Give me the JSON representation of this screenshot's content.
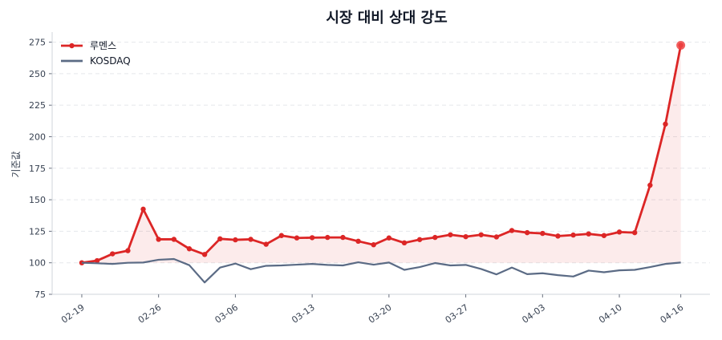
{
  "chart_data": {
    "type": "line",
    "title": "시장 대비 상대 강도",
    "xlabel": "",
    "ylabel": "기준값",
    "ylim": [
      75,
      283
    ],
    "yticks": [
      75,
      100,
      125,
      150,
      175,
      200,
      225,
      250,
      275
    ],
    "grid": "horizontal dashed",
    "legend_placement": "top-left",
    "baseline": 100,
    "x": [
      "02-19",
      "02-20",
      "02-21",
      "02-24",
      "02-25",
      "02-26",
      "02-27",
      "02-28",
      "03-04",
      "03-05",
      "03-06",
      "03-07",
      "03-10",
      "03-11",
      "03-12",
      "03-13",
      "03-14",
      "03-17",
      "03-18",
      "03-19",
      "03-20",
      "03-21",
      "03-24",
      "03-25",
      "03-26",
      "03-27",
      "03-28",
      "03-31",
      "04-01",
      "04-02",
      "04-03",
      "04-04",
      "04-07",
      "04-08",
      "04-09",
      "04-10",
      "04-11",
      "04-14",
      "04-15",
      "04-16"
    ],
    "xtick_labels": [
      "02-19",
      "02-26",
      "03-06",
      "03-13",
      "03-20",
      "03-27",
      "04-03",
      "04-10",
      "04-16"
    ],
    "series": [
      {
        "name": "루멘스",
        "color": "#dc2626",
        "markers": true,
        "fill_to_baseline": true,
        "values": [
          100,
          101.7,
          107.1,
          109.6,
          142.5,
          118.6,
          118.6,
          111.1,
          106.6,
          119.0,
          118.2,
          118.6,
          114.7,
          121.6,
          119.7,
          119.9,
          120.1,
          120.1,
          117.1,
          114.3,
          119.7,
          115.8,
          118.4,
          120.1,
          122.2,
          120.7,
          122.2,
          120.5,
          125.6,
          123.9,
          123.3,
          121.2,
          122.0,
          122.9,
          121.6,
          124.4,
          123.9,
          161.5,
          210,
          272.5
        ]
      },
      {
        "name": "KOSDAQ",
        "color": "#5b6b85",
        "markers": false,
        "values": [
          100,
          99.6,
          99.1,
          100,
          100.2,
          102.4,
          103,
          98.1,
          84.4,
          96.2,
          99.4,
          94.9,
          97.6,
          97.9,
          98.5,
          99.1,
          98.3,
          97.9,
          100.4,
          98.5,
          100.2,
          94.4,
          96.6,
          99.8,
          97.9,
          98.3,
          95.1,
          90.8,
          96.2,
          91.0,
          91.7,
          90.2,
          89.1,
          93.8,
          92.5,
          94.0,
          94.4,
          96.6,
          99.1,
          100.2
        ]
      }
    ]
  }
}
